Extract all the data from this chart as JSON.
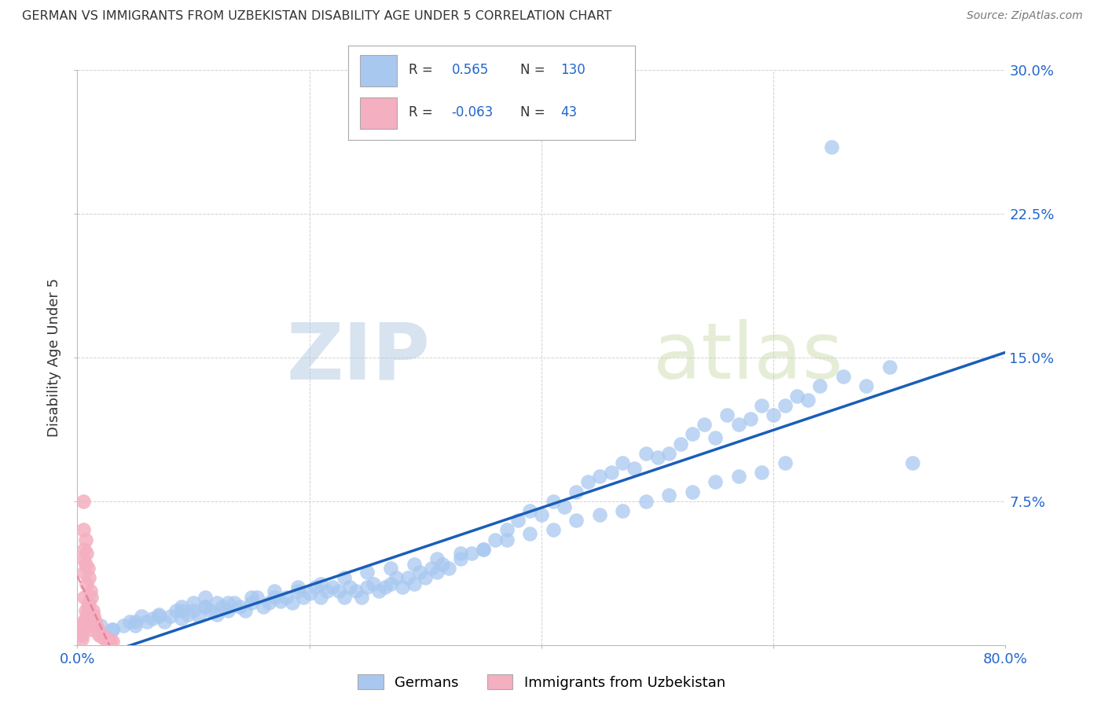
{
  "title": "GERMAN VS IMMIGRANTS FROM UZBEKISTAN DISABILITY AGE UNDER 5 CORRELATION CHART",
  "source": "Source: ZipAtlas.com",
  "ylabel": "Disability Age Under 5",
  "xlim": [
    0.0,
    0.8
  ],
  "ylim": [
    0.0,
    0.3
  ],
  "xticks": [
    0.0,
    0.2,
    0.4,
    0.6,
    0.8
  ],
  "xticklabels": [
    "0.0%",
    "",
    "",
    "",
    "80.0%"
  ],
  "yticks": [
    0.0,
    0.075,
    0.15,
    0.225,
    0.3
  ],
  "yticklabels_right": [
    "",
    "7.5%",
    "15.0%",
    "22.5%",
    "30.0%"
  ],
  "blue_R": "0.565",
  "blue_N": "130",
  "pink_R": "-0.063",
  "pink_N": "43",
  "blue_color": "#a8c8f0",
  "pink_color": "#f4afc0",
  "blue_line_color": "#1a5eb8",
  "pink_line_color": "#e07898",
  "legend_label_blue": "Germans",
  "legend_label_pink": "Immigrants from Uzbekistan",
  "watermark_zip": "ZIP",
  "watermark_atlas": "atlas",
  "background_color": "#ffffff",
  "blue_scatter_x": [
    0.02,
    0.03,
    0.04,
    0.045,
    0.05,
    0.055,
    0.06,
    0.065,
    0.07,
    0.075,
    0.08,
    0.085,
    0.09,
    0.09,
    0.095,
    0.1,
    0.1,
    0.105,
    0.11,
    0.11,
    0.115,
    0.12,
    0.12,
    0.125,
    0.13,
    0.135,
    0.14,
    0.145,
    0.15,
    0.155,
    0.16,
    0.165,
    0.17,
    0.175,
    0.18,
    0.185,
    0.19,
    0.195,
    0.2,
    0.205,
    0.21,
    0.215,
    0.22,
    0.225,
    0.23,
    0.235,
    0.24,
    0.245,
    0.25,
    0.255,
    0.26,
    0.265,
    0.27,
    0.275,
    0.28,
    0.285,
    0.29,
    0.295,
    0.3,
    0.305,
    0.31,
    0.315,
    0.32,
    0.33,
    0.34,
    0.35,
    0.36,
    0.37,
    0.38,
    0.39,
    0.4,
    0.41,
    0.42,
    0.43,
    0.44,
    0.45,
    0.46,
    0.47,
    0.48,
    0.49,
    0.5,
    0.51,
    0.52,
    0.53,
    0.54,
    0.55,
    0.56,
    0.57,
    0.58,
    0.59,
    0.6,
    0.61,
    0.62,
    0.63,
    0.64,
    0.65,
    0.66,
    0.68,
    0.7,
    0.72,
    0.03,
    0.05,
    0.07,
    0.09,
    0.11,
    0.13,
    0.15,
    0.17,
    0.19,
    0.21,
    0.23,
    0.25,
    0.27,
    0.29,
    0.31,
    0.33,
    0.35,
    0.37,
    0.39,
    0.41,
    0.43,
    0.45,
    0.47,
    0.49,
    0.51,
    0.53,
    0.55,
    0.57,
    0.59,
    0.61
  ],
  "blue_scatter_y": [
    0.01,
    0.008,
    0.01,
    0.012,
    0.01,
    0.015,
    0.012,
    0.014,
    0.016,
    0.012,
    0.015,
    0.018,
    0.014,
    0.02,
    0.016,
    0.018,
    0.022,
    0.015,
    0.02,
    0.025,
    0.018,
    0.016,
    0.022,
    0.02,
    0.018,
    0.022,
    0.02,
    0.018,
    0.022,
    0.025,
    0.02,
    0.022,
    0.025,
    0.023,
    0.025,
    0.022,
    0.028,
    0.025,
    0.027,
    0.03,
    0.025,
    0.028,
    0.03,
    0.028,
    0.025,
    0.03,
    0.028,
    0.025,
    0.03,
    0.032,
    0.028,
    0.03,
    0.032,
    0.035,
    0.03,
    0.035,
    0.032,
    0.038,
    0.035,
    0.04,
    0.038,
    0.042,
    0.04,
    0.045,
    0.048,
    0.05,
    0.055,
    0.06,
    0.065,
    0.07,
    0.068,
    0.075,
    0.072,
    0.08,
    0.085,
    0.088,
    0.09,
    0.095,
    0.092,
    0.1,
    0.098,
    0.1,
    0.105,
    0.11,
    0.115,
    0.108,
    0.12,
    0.115,
    0.118,
    0.125,
    0.12,
    0.125,
    0.13,
    0.128,
    0.135,
    0.26,
    0.14,
    0.135,
    0.145,
    0.095,
    0.008,
    0.012,
    0.015,
    0.018,
    0.02,
    0.022,
    0.025,
    0.028,
    0.03,
    0.032,
    0.035,
    0.038,
    0.04,
    0.042,
    0.045,
    0.048,
    0.05,
    0.055,
    0.058,
    0.06,
    0.065,
    0.068,
    0.07,
    0.075,
    0.078,
    0.08,
    0.085,
    0.088,
    0.09,
    0.095
  ],
  "pink_scatter_x": [
    0.003,
    0.003,
    0.004,
    0.004,
    0.004,
    0.005,
    0.005,
    0.005,
    0.005,
    0.006,
    0.006,
    0.006,
    0.007,
    0.007,
    0.007,
    0.008,
    0.008,
    0.008,
    0.009,
    0.009,
    0.01,
    0.01,
    0.01,
    0.011,
    0.011,
    0.012,
    0.012,
    0.013,
    0.014,
    0.015,
    0.016,
    0.017,
    0.018,
    0.019,
    0.02,
    0.021,
    0.022,
    0.024,
    0.025,
    0.026,
    0.027,
    0.028,
    0.03
  ],
  "pink_scatter_y": [
    0.01,
    0.005,
    0.008,
    0.005,
    0.003,
    0.075,
    0.06,
    0.045,
    0.012,
    0.05,
    0.038,
    0.025,
    0.055,
    0.042,
    0.018,
    0.048,
    0.032,
    0.015,
    0.04,
    0.02,
    0.035,
    0.022,
    0.012,
    0.028,
    0.01,
    0.025,
    0.008,
    0.018,
    0.015,
    0.012,
    0.01,
    0.008,
    0.008,
    0.005,
    0.005,
    0.005,
    0.004,
    0.003,
    0.003,
    0.003,
    0.002,
    0.002,
    0.002
  ]
}
